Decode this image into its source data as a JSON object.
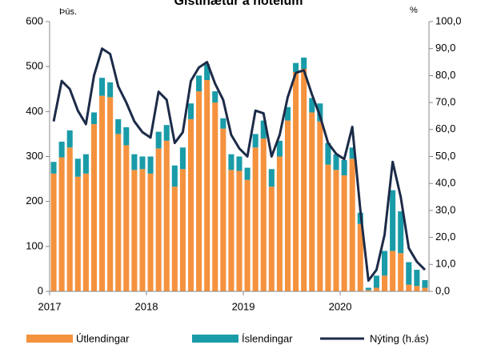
{
  "chart_data": {
    "type": "bar",
    "stacked": true,
    "title": "Gistinætur á hótelum",
    "y_label": "Þús.",
    "y2_label": "%",
    "categories": [
      "2017",
      null,
      null,
      null,
      null,
      null,
      null,
      null,
      null,
      null,
      null,
      null,
      "2018",
      null,
      null,
      null,
      null,
      null,
      null,
      null,
      null,
      null,
      null,
      null,
      "2019",
      null,
      null,
      null,
      null,
      null,
      null,
      null,
      null,
      null,
      null,
      null,
      "2020",
      null,
      null,
      null,
      null,
      null,
      null,
      null,
      null,
      null,
      null
    ],
    "series": [
      {
        "name": "Útlendingar",
        "color": "#f5923e",
        "values": [
          262,
          298,
          320,
          255,
          262,
          372,
          435,
          432,
          350,
          325,
          270,
          272,
          262,
          318,
          335,
          233,
          272,
          383,
          445,
          470,
          420,
          362,
          270,
          268,
          248,
          320,
          340,
          233,
          300,
          380,
          488,
          495,
          398,
          378,
          282,
          270,
          258,
          295,
          150,
          3,
          8,
          35,
          90,
          85,
          15,
          12,
          8
        ]
      },
      {
        "name": "Íslendingar",
        "color": "#1a9ba8",
        "values": [
          26,
          35,
          38,
          40,
          43,
          26,
          40,
          33,
          33,
          40,
          35,
          28,
          38,
          37,
          35,
          47,
          48,
          35,
          35,
          35,
          25,
          23,
          35,
          32,
          27,
          30,
          40,
          39,
          35,
          30,
          20,
          25,
          32,
          40,
          48,
          35,
          34,
          25,
          25,
          5,
          27,
          55,
          135,
          93,
          50,
          36,
          17
        ]
      },
      {
        "name": "Nýting  (h.ás)",
        "color": "#1c2b48",
        "type": "line",
        "axis": "y2",
        "values": [
          63,
          78,
          75,
          67,
          62,
          80,
          90,
          88,
          76,
          70,
          63,
          59,
          57,
          74,
          71,
          55,
          59,
          78,
          83,
          85,
          77,
          71,
          58,
          53,
          50,
          67,
          66,
          50,
          58,
          72,
          81,
          82,
          73,
          65,
          55,
          51,
          49,
          61,
          30,
          4,
          8,
          21,
          48,
          35,
          16,
          11,
          8
        ]
      }
    ],
    "ylim": [
      0,
      600
    ],
    "yticks": [
      0,
      100,
      200,
      300,
      400,
      500,
      600
    ],
    "y2lim": [
      0,
      100
    ],
    "y2ticks": [
      {
        "value": 0,
        "label": "0,0"
      },
      {
        "value": 10,
        "label": "10,0"
      },
      {
        "value": 20,
        "label": "20,0"
      },
      {
        "value": 30,
        "label": "30,0"
      },
      {
        "value": 40,
        "label": "40,0"
      },
      {
        "value": 50,
        "label": "50,0"
      },
      {
        "value": 60,
        "label": "60,0"
      },
      {
        "value": 70,
        "label": "70,0"
      },
      {
        "value": 80,
        "label": "80,0"
      },
      {
        "value": 90,
        "label": "90,0"
      },
      {
        "value": 100,
        "label": "100,0"
      }
    ],
    "legend": "bottom"
  }
}
